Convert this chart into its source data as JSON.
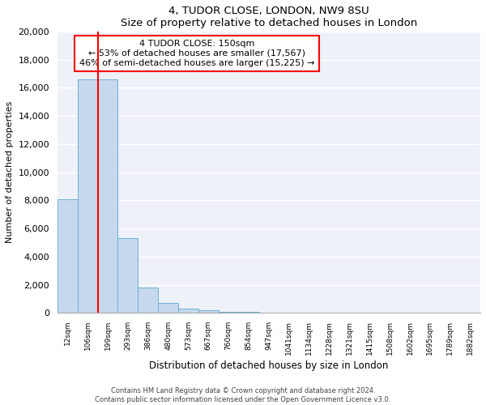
{
  "title": "4, TUDOR CLOSE, LONDON, NW9 8SU",
  "subtitle": "Size of property relative to detached houses in London",
  "xlabel": "Distribution of detached houses by size in London",
  "ylabel": "Number of detached properties",
  "bar_color": "#c6d9ec",
  "bar_edge_color": "#6aaed6",
  "vline_color": "red",
  "vline_x": 1.5,
  "categories": [
    "12sqm",
    "106sqm",
    "199sqm",
    "293sqm",
    "386sqm",
    "480sqm",
    "573sqm",
    "667sqm",
    "760sqm",
    "854sqm",
    "947sqm",
    "1041sqm",
    "1134sqm",
    "1228sqm",
    "1321sqm",
    "1415sqm",
    "1508sqm",
    "1602sqm",
    "1695sqm",
    "1789sqm",
    "1882sqm"
  ],
  "values": [
    8100,
    16600,
    16600,
    5300,
    1800,
    700,
    300,
    200,
    100,
    50,
    30,
    10,
    5,
    3,
    2,
    1,
    1,
    0,
    0,
    0,
    0
  ],
  "ylim": [
    0,
    20000
  ],
  "yticks": [
    0,
    2000,
    4000,
    6000,
    8000,
    10000,
    12000,
    14000,
    16000,
    18000,
    20000
  ],
  "annotation_title": "4 TUDOR CLOSE: 150sqm",
  "annotation_line1": "← 53% of detached houses are smaller (17,567)",
  "annotation_line2": "46% of semi-detached houses are larger (15,225) →",
  "annotation_box_color": "white",
  "annotation_box_edge": "red",
  "footer_line1": "Contains HM Land Registry data © Crown copyright and database right 2024.",
  "footer_line2": "Contains public sector information licensed under the Open Government Licence v3.0.",
  "background_color": "#eef2f8"
}
